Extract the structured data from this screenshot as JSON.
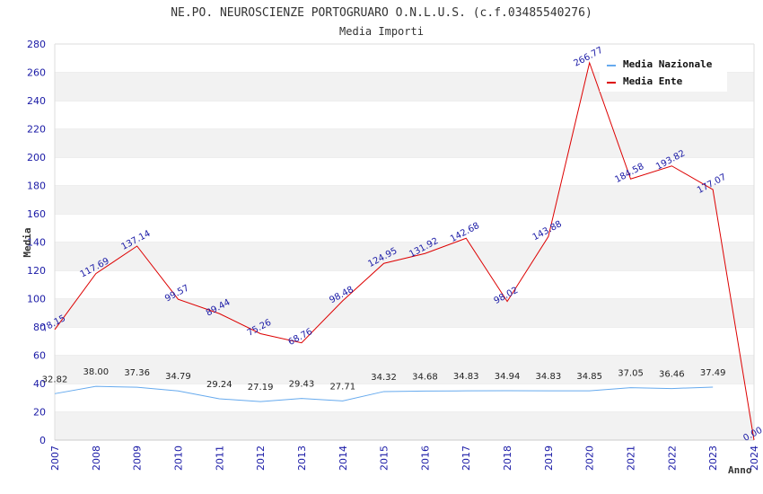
{
  "chart_data": {
    "type": "line",
    "title": "NE.PO. NEUROSCIENZE PORTOGRUARO O.N.L.U.S. (c.f.03485540276)",
    "subtitle": "Media Importi",
    "xlabel": "Anno",
    "ylabel": "Media",
    "ylim": [
      0,
      280
    ],
    "yticks": [
      0,
      20,
      40,
      60,
      80,
      100,
      120,
      140,
      160,
      180,
      200,
      220,
      240,
      260,
      280
    ],
    "x": [
      2007,
      2008,
      2009,
      2010,
      2011,
      2012,
      2013,
      2014,
      2015,
      2016,
      2017,
      2018,
      2019,
      2020,
      2021,
      2022,
      2023,
      2024
    ],
    "grid": "horizontal bands",
    "legend_position": "top-right",
    "series": [
      {
        "name": "Media Nazionale",
        "color": "#66aaee",
        "values": [
          32.82,
          38.0,
          37.36,
          34.79,
          29.24,
          27.19,
          29.43,
          27.71,
          34.32,
          34.68,
          34.83,
          34.94,
          34.83,
          34.85,
          37.05,
          36.46,
          37.49,
          null
        ],
        "labels": [
          "32.82",
          "38.00",
          "37.36",
          "34.79",
          "29.24",
          "27.19",
          "29.43",
          "27.71",
          "34.32",
          "34.68",
          "34.83",
          "34.94",
          "34.83",
          "34.85",
          "37.05",
          "36.46",
          "37.49",
          ""
        ]
      },
      {
        "name": "Media Ente",
        "color": "#dd0000",
        "values": [
          78.15,
          117.69,
          137.14,
          99.57,
          89.44,
          75.26,
          68.76,
          98.48,
          124.95,
          131.92,
          142.68,
          98.02,
          143.88,
          266.77,
          184.58,
          193.82,
          177.07,
          0.0
        ],
        "labels": [
          "78.15",
          "117.69",
          "137.14",
          "99.57",
          "89.44",
          "75.26",
          "68.76",
          "98.48",
          "124.95",
          "131.92",
          "142.68",
          "98.02",
          "143.88",
          "266.77",
          "184.58",
          "193.82",
          "177.07",
          "0.00"
        ]
      }
    ]
  }
}
